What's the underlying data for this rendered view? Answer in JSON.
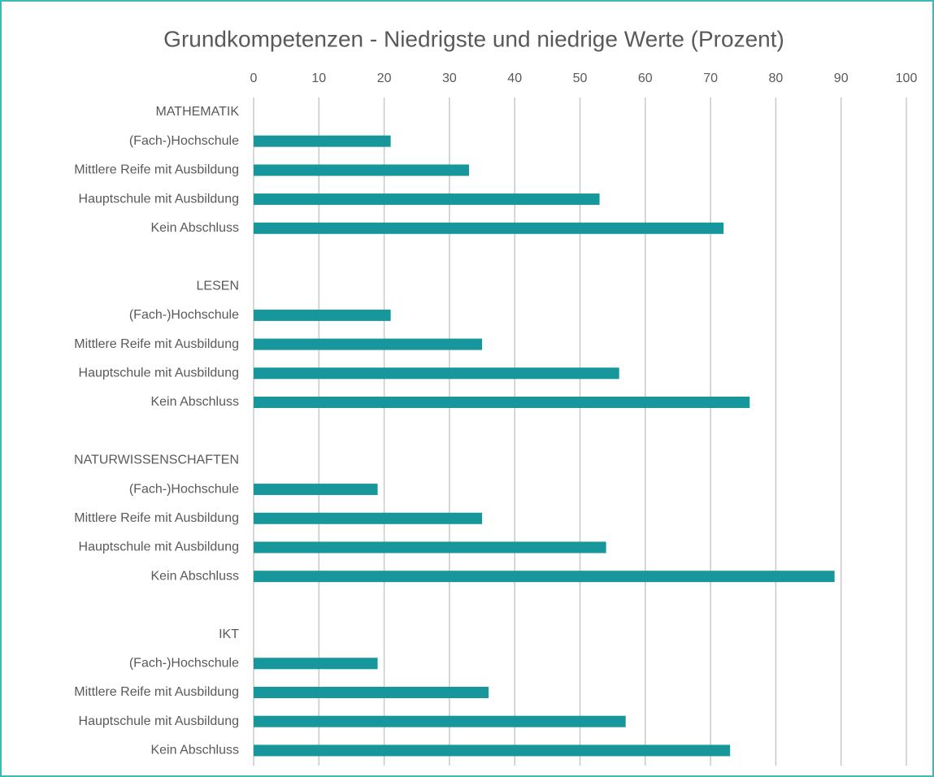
{
  "chart_data": {
    "type": "barh",
    "title": "Grundkompetenzen - Niedrigste und niedrige Werte (Prozent)",
    "categories": [
      "MATHEMATIK",
      "(Fach-)Hochschule",
      "Mittlere Reife mit Ausbildung",
      "Hauptschule mit Ausbildung",
      "Kein Abschluss",
      null,
      "LESEN",
      "(Fach-)Hochschule",
      "Mittlere Reife mit Ausbildung",
      "Hauptschule mit Ausbildung",
      "Kein Abschluss",
      null,
      "NATURWISSENSCHAFTEN",
      "(Fach-)Hochschule",
      "Mittlere Reife mit Ausbildung",
      "Hauptschule mit Ausbildung",
      "Kein Abschluss",
      null,
      "IKT",
      "(Fach-)Hochschule",
      "Mittlere Reife mit Ausbildung",
      "Hauptschule mit Ausbildung",
      "Kein Abschluss"
    ],
    "values": [
      null,
      21,
      33,
      53,
      72,
      null,
      null,
      21,
      35,
      56,
      76,
      null,
      null,
      19,
      35,
      54,
      89,
      null,
      null,
      19,
      36,
      57,
      73
    ],
    "color": "#17979b",
    "xlim": [
      0,
      100
    ],
    "xticks": [
      0,
      10,
      20,
      30,
      40,
      50,
      60,
      70,
      80,
      90,
      100
    ],
    "grid": true
  }
}
